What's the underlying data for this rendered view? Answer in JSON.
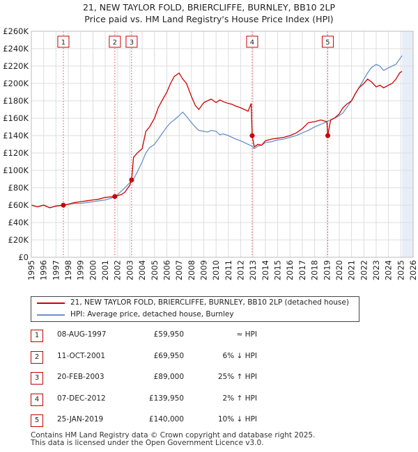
{
  "title_line1": "21, NEW TAYLOR FOLD, BRIERCLIFFE, BURNLEY, BB10 2LP",
  "title_line2": "Price paid vs. HM Land Registry's House Price Index (HPI)",
  "colors": {
    "property": "#cc0000",
    "hpi": "#6b8fc9",
    "vline": "#e07070",
    "grid": "#dddddd",
    "shade": "#e8eef8"
  },
  "legend": {
    "property": "21, NEW TAYLOR FOLD, BRIERCLIFFE, BURNLEY, BB10 2LP (detached house)",
    "hpi": "HPI: Average price, detached house, Burnley"
  },
  "chart_data": {
    "type": "line",
    "ylim": [
      0,
      260000
    ],
    "xlim": [
      1995,
      2026
    ],
    "y_ticks": [
      0,
      20000,
      40000,
      60000,
      80000,
      100000,
      120000,
      140000,
      160000,
      180000,
      200000,
      220000,
      240000,
      260000
    ],
    "y_tick_labels": [
      "£0",
      "£20K",
      "£40K",
      "£60K",
      "£80K",
      "£100K",
      "£120K",
      "£140K",
      "£160K",
      "£180K",
      "£200K",
      "£220K",
      "£240K",
      "£260K"
    ],
    "x_ticks": [
      1995,
      1996,
      1997,
      1998,
      1999,
      2000,
      2001,
      2002,
      2003,
      2004,
      2005,
      2006,
      2007,
      2008,
      2009,
      2010,
      2011,
      2012,
      2013,
      2014,
      2015,
      2016,
      2017,
      2018,
      2019,
      2020,
      2021,
      2022,
      2023,
      2024,
      2025,
      2026
    ],
    "forecast_start": 2025.1,
    "series": [
      {
        "name": "21, NEW TAYLOR FOLD, BRIERCLIFFE, BURNLEY, BB10 2LP (detached house)",
        "x": [
          1995.0,
          1995.5,
          1996.0,
          1996.5,
          1997.0,
          1997.6,
          1998.0,
          1998.5,
          1999.0,
          1999.5,
          2000.0,
          2000.5,
          2001.0,
          2001.78,
          2002.0,
          2002.3,
          2002.6,
          2003.0,
          2003.14,
          2003.3,
          2003.6,
          2004.0,
          2004.3,
          2004.6,
          2005.0,
          2005.3,
          2005.6,
          2006.0,
          2006.3,
          2006.6,
          2007.0,
          2007.3,
          2007.6,
          2008.0,
          2008.3,
          2008.6,
          2009.0,
          2009.3,
          2009.6,
          2010.0,
          2010.3,
          2010.6,
          2011.0,
          2011.3,
          2011.6,
          2012.0,
          2012.3,
          2012.6,
          2012.85,
          2012.93,
          2013.1,
          2013.4,
          2013.7,
          2014.0,
          2014.5,
          2015.0,
          2015.5,
          2016.0,
          2016.5,
          2017.0,
          2017.5,
          2018.0,
          2018.5,
          2019.0,
          2019.07,
          2019.3,
          2019.6,
          2020.0,
          2020.3,
          2020.6,
          2021.0,
          2021.3,
          2021.6,
          2022.0,
          2022.3,
          2022.6,
          2023.0,
          2023.3,
          2023.6,
          2024.0,
          2024.3,
          2024.6,
          2024.9,
          2025.1
        ],
        "values": [
          60000,
          58000,
          60000,
          57000,
          59000,
          59950,
          61000,
          63000,
          64000,
          65000,
          66000,
          67000,
          69000,
          69950,
          71000,
          72000,
          75000,
          83000,
          89000,
          115000,
          120000,
          125000,
          145000,
          150000,
          160000,
          172000,
          180000,
          190000,
          200000,
          208000,
          212000,
          205000,
          200000,
          185000,
          175000,
          170000,
          178000,
          180000,
          182000,
          178000,
          181000,
          179000,
          177000,
          176000,
          174000,
          172000,
          170000,
          168000,
          177000,
          139950,
          127000,
          130000,
          129000,
          134000,
          136000,
          137000,
          138000,
          140000,
          143000,
          148000,
          155000,
          156000,
          158000,
          156000,
          140000,
          158000,
          160000,
          165000,
          172000,
          176000,
          180000,
          188000,
          195000,
          200000,
          205000,
          202000,
          196000,
          198000,
          195000,
          198000,
          200000,
          205000,
          212000,
          214000
        ]
      },
      {
        "name": "HPI: Average price, detached house, Burnley",
        "x": [
          1995.0,
          1995.5,
          1996.0,
          1996.5,
          1997.0,
          1997.6,
          1998.0,
          1998.5,
          1999.0,
          1999.5,
          2000.0,
          2000.5,
          2001.0,
          2001.5,
          2002.0,
          2002.3,
          2002.6,
          2003.0,
          2003.3,
          2003.6,
          2004.0,
          2004.3,
          2004.6,
          2005.0,
          2005.3,
          2005.6,
          2006.0,
          2006.3,
          2006.6,
          2007.0,
          2007.3,
          2007.6,
          2008.0,
          2008.3,
          2008.6,
          2009.0,
          2009.3,
          2009.6,
          2010.0,
          2010.3,
          2010.6,
          2011.0,
          2011.3,
          2011.6,
          2012.0,
          2012.3,
          2012.6,
          2012.9,
          2013.1,
          2013.4,
          2013.7,
          2014.0,
          2014.5,
          2015.0,
          2015.5,
          2016.0,
          2016.5,
          2017.0,
          2017.5,
          2018.0,
          2018.5,
          2019.0,
          2019.3,
          2019.6,
          2020.0,
          2020.3,
          2020.6,
          2021.0,
          2021.3,
          2021.6,
          2022.0,
          2022.3,
          2022.6,
          2023.0,
          2023.3,
          2023.6,
          2024.0,
          2024.3,
          2024.6,
          2024.9,
          2025.1
        ],
        "values": [
          60000,
          58000,
          60000,
          57000,
          59000,
          60000,
          61000,
          62000,
          62000,
          63000,
          64000,
          65000,
          66000,
          68000,
          72000,
          76000,
          80000,
          86000,
          90000,
          98000,
          110000,
          120000,
          126000,
          130000,
          136000,
          142000,
          150000,
          155000,
          158000,
          163000,
          167000,
          162000,
          155000,
          150000,
          146000,
          145000,
          144000,
          146000,
          145000,
          141000,
          142000,
          140000,
          138000,
          136000,
          134000,
          132000,
          130000,
          128000,
          125000,
          128000,
          129000,
          132000,
          133000,
          135000,
          136000,
          138000,
          140000,
          143000,
          146000,
          150000,
          153000,
          156000,
          158000,
          160000,
          163000,
          166000,
          172000,
          180000,
          188000,
          195000,
          205000,
          212000,
          218000,
          222000,
          220000,
          215000,
          218000,
          220000,
          222000,
          228000,
          232000
        ]
      }
    ],
    "sales": [
      {
        "n": "1",
        "x": 1997.6,
        "value": 59950
      },
      {
        "n": "2",
        "x": 2001.78,
        "value": 69950
      },
      {
        "n": "3",
        "x": 2003.14,
        "value": 89000
      },
      {
        "n": "4",
        "x": 2012.93,
        "value": 139950
      },
      {
        "n": "5",
        "x": 2019.07,
        "value": 140000
      }
    ]
  },
  "table": [
    {
      "n": "1",
      "date": "08-AUG-1997",
      "price": "£59,950",
      "hpi": "≈ HPI"
    },
    {
      "n": "2",
      "date": "11-OCT-2001",
      "price": "£69,950",
      "hpi": "6% ↓ HPI"
    },
    {
      "n": "3",
      "date": "20-FEB-2003",
      "price": "£89,000",
      "hpi": "25% ↑ HPI"
    },
    {
      "n": "4",
      "date": "07-DEC-2012",
      "price": "£139,950",
      "hpi": "2% ↑ HPI"
    },
    {
      "n": "5",
      "date": "25-JAN-2019",
      "price": "£140,000",
      "hpi": "10% ↓ HPI"
    }
  ],
  "footer_line1": "Contains HM Land Registry data © Crown copyright and database right 2025.",
  "footer_line2": "This data is licensed under the Open Government Licence v3.0."
}
